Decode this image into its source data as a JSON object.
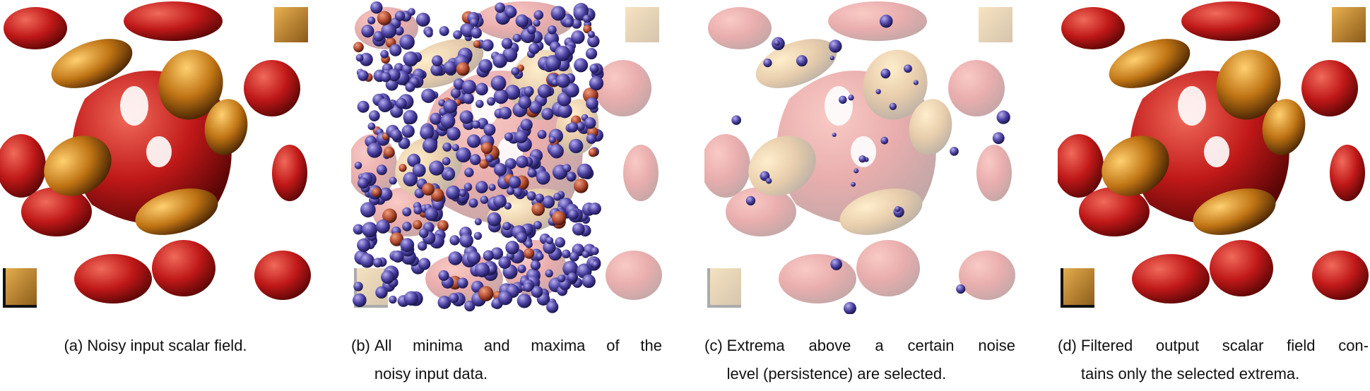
{
  "figure": {
    "panels": [
      {
        "label": "(a)",
        "lines": [
          "Noisy input scalar field."
        ]
      },
      {
        "label": "(b)",
        "lines": [
          "All minima and maxima of the",
          "noisy input data."
        ]
      },
      {
        "label": "(c)",
        "lines": [
          "Extrema above a certain noise",
          "level (persistence) are selected."
        ]
      },
      {
        "label": "(d)",
        "lines": [
          "Filtered output scalar field con-",
          "tains only the selected extrema."
        ]
      }
    ]
  }
}
